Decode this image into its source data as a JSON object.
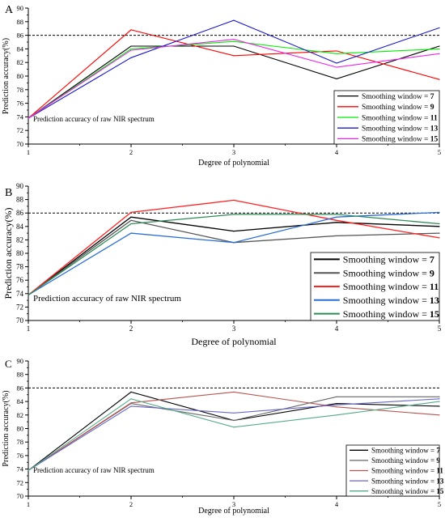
{
  "chart_data": [
    {
      "panel_label": "A",
      "type": "line",
      "x": [
        1,
        2,
        3,
        4,
        5
      ],
      "xlabel": "Degree of polynomial",
      "ylabel": "Prediction accuracy(%)",
      "xlim": [
        1,
        5
      ],
      "ylim": [
        70,
        90
      ],
      "x_ticks": [
        "1",
        "2",
        "3",
        "4",
        "5"
      ],
      "y_ticks": [
        "70",
        "72",
        "74",
        "76",
        "78",
        "80",
        "82",
        "84",
        "86",
        "88",
        "90"
      ],
      "reference_line": {
        "y": 86,
        "style": "dashed"
      },
      "annotation": "Prediction accuracy of raw NIR spectrum",
      "legend_placement": "bottom-right",
      "legend_prefix": "Smoothing window = ",
      "series": [
        {
          "name": "7",
          "color": "#000000",
          "values": [
            73.8,
            84.4,
            84.4,
            79.6,
            84.4
          ]
        },
        {
          "name": "9",
          "color": "#ff0000",
          "values": [
            73.8,
            86.8,
            83.0,
            83.7,
            79.5
          ]
        },
        {
          "name": "11",
          "color": "#00ee00",
          "values": [
            73.8,
            84.0,
            85.1,
            83.3,
            84.0
          ]
        },
        {
          "name": "13",
          "color": "#1a1acc",
          "values": [
            73.8,
            82.7,
            88.2,
            81.9,
            87.1
          ]
        },
        {
          "name": "15",
          "color": "#ee22ee",
          "values": [
            73.8,
            83.8,
            85.4,
            81.3,
            83.3
          ]
        }
      ]
    },
    {
      "panel_label": "B",
      "type": "line",
      "x": [
        1,
        2,
        3,
        4,
        5
      ],
      "xlabel": "Degree of polynomial",
      "ylabel": "Prediction accuracy(%)",
      "xlim": [
        1,
        5
      ],
      "ylim": [
        70,
        90
      ],
      "x_ticks": [
        "1",
        "2",
        "3",
        "4",
        "5"
      ],
      "y_ticks": [
        "70",
        "72",
        "74",
        "76",
        "78",
        "80",
        "82",
        "84",
        "86",
        "88",
        "90"
      ],
      "reference_line": {
        "y": 86,
        "style": "dashed"
      },
      "annotation": "Prediction accuracy of raw NIR spectrum",
      "legend_placement": "bottom-right",
      "legend_prefix": "Smoothing window = ",
      "series": [
        {
          "name": "7",
          "color": "#000000",
          "values": [
            73.8,
            85.4,
            83.3,
            84.6,
            84.0
          ]
        },
        {
          "name": "9",
          "color": "#555555",
          "values": [
            73.8,
            84.9,
            81.6,
            82.6,
            83.0
          ]
        },
        {
          "name": "11",
          "color": "#ff2222",
          "values": [
            73.8,
            86.1,
            87.9,
            84.9,
            82.3
          ]
        },
        {
          "name": "13",
          "color": "#2a6ed8",
          "values": [
            73.8,
            83.0,
            81.6,
            85.4,
            86.1
          ]
        },
        {
          "name": "15",
          "color": "#2e8b57",
          "values": [
            73.8,
            84.4,
            85.8,
            85.8,
            84.4
          ]
        }
      ]
    },
    {
      "panel_label": "C",
      "type": "line",
      "x": [
        1,
        2,
        3,
        4,
        5
      ],
      "xlabel": "Degree of polynomial",
      "ylabel": "Prediction accuracy(%)",
      "xlim": [
        1,
        5
      ],
      "ylim": [
        70,
        90
      ],
      "x_ticks": [
        "1",
        "2",
        "3",
        "4",
        "5"
      ],
      "y_ticks": [
        "70",
        "72",
        "74",
        "76",
        "78",
        "80",
        "82",
        "84",
        "86",
        "88",
        "90"
      ],
      "reference_line": {
        "y": 86,
        "style": "dashed"
      },
      "annotation": "Prediction accuracy of raw NIR spectrum",
      "legend_placement": "bottom-right",
      "legend_prefix": "Smoothing window = ",
      "series": [
        {
          "name": "7",
          "color": "#000000",
          "values": [
            73.8,
            85.4,
            81.2,
            83.7,
            83.3
          ]
        },
        {
          "name": "9",
          "color": "#666666",
          "values": [
            73.8,
            83.7,
            81.2,
            84.7,
            84.7
          ]
        },
        {
          "name": "11",
          "color": "#b85450",
          "values": [
            73.8,
            83.8,
            85.4,
            83.2,
            82.0
          ]
        },
        {
          "name": "13",
          "color": "#6666cc",
          "values": [
            73.8,
            83.3,
            82.3,
            83.5,
            84.4
          ]
        },
        {
          "name": "15",
          "color": "#55aa88",
          "values": [
            73.8,
            84.4,
            80.2,
            82.0,
            84.0
          ]
        }
      ]
    }
  ]
}
